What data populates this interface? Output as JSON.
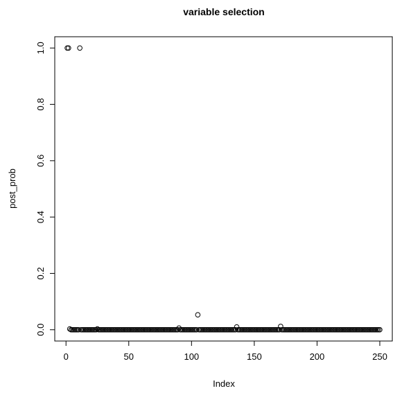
{
  "chart_data": {
    "type": "scatter",
    "title": "variable selection",
    "x_label": "Index",
    "y_label": "post_prob",
    "x": [
      1,
      2,
      3,
      4,
      5,
      6,
      7,
      8,
      9,
      10,
      11,
      12,
      13,
      14,
      15,
      16,
      17,
      18,
      19,
      20,
      21,
      22,
      23,
      24,
      25,
      26,
      27,
      28,
      29,
      30,
      31,
      32,
      33,
      34,
      35,
      36,
      37,
      38,
      39,
      40,
      41,
      42,
      43,
      44,
      45,
      46,
      47,
      48,
      49,
      50,
      51,
      52,
      53,
      54,
      55,
      56,
      57,
      58,
      59,
      60,
      61,
      62,
      63,
      64,
      65,
      66,
      67,
      68,
      69,
      70,
      71,
      72,
      73,
      74,
      75,
      76,
      77,
      78,
      79,
      80,
      81,
      82,
      83,
      84,
      85,
      86,
      87,
      88,
      89,
      90,
      91,
      92,
      93,
      94,
      95,
      96,
      97,
      98,
      99,
      100,
      101,
      102,
      103,
      104,
      105,
      106,
      107,
      108,
      109,
      110,
      111,
      112,
      113,
      114,
      115,
      116,
      117,
      118,
      119,
      120,
      121,
      122,
      123,
      124,
      125,
      126,
      127,
      128,
      129,
      130,
      131,
      132,
      133,
      134,
      135,
      136,
      137,
      138,
      139,
      140,
      141,
      142,
      143,
      144,
      145,
      146,
      147,
      148,
      149,
      150,
      151,
      152,
      153,
      154,
      155,
      156,
      157,
      158,
      159,
      160,
      161,
      162,
      163,
      164,
      165,
      166,
      167,
      168,
      169,
      170,
      171,
      172,
      173,
      174,
      175,
      176,
      177,
      178,
      179,
      180,
      181,
      182,
      183,
      184,
      185,
      186,
      187,
      188,
      189,
      190,
      191,
      192,
      193,
      194,
      195,
      196,
      197,
      198,
      199,
      200,
      201,
      202,
      203,
      204,
      205,
      206,
      207,
      208,
      209,
      210,
      211,
      212,
      213,
      214,
      215,
      216,
      217,
      218,
      219,
      220,
      221,
      222,
      223,
      224,
      225,
      226,
      227,
      228,
      229,
      230,
      231,
      232,
      233,
      234,
      235,
      236,
      237,
      238,
      239,
      240,
      241,
      242,
      243,
      244,
      245,
      246,
      247,
      248,
      249,
      250
    ],
    "values": [
      1,
      1,
      0.003,
      0,
      0,
      0,
      0,
      0,
      0,
      0,
      1,
      0,
      0,
      0,
      0,
      0,
      0,
      0,
      0,
      0,
      0,
      0,
      0,
      0,
      0.003,
      0,
      0,
      0,
      0,
      0,
      0,
      0,
      0,
      0,
      0,
      0,
      0,
      0,
      0,
      0,
      0,
      0,
      0,
      0,
      0,
      0,
      0,
      0,
      0,
      0,
      0,
      0,
      0,
      0,
      0,
      0,
      0,
      0,
      0,
      0,
      0,
      0,
      0,
      0,
      0,
      0,
      0,
      0,
      0,
      0,
      0,
      0,
      0,
      0,
      0,
      0,
      0,
      0,
      0,
      0,
      0,
      0,
      0,
      0,
      0,
      0,
      0,
      0,
      0,
      0.006,
      0,
      0,
      0,
      0,
      0,
      0,
      0,
      0,
      0,
      0,
      0,
      0,
      0,
      0,
      0.053,
      0,
      0,
      0,
      0,
      0,
      0,
      0,
      0,
      0,
      0,
      0,
      0,
      0,
      0,
      0,
      0,
      0,
      0,
      0,
      0,
      0,
      0,
      0,
      0,
      0,
      0,
      0,
      0,
      0,
      0,
      0.01,
      0,
      0,
      0,
      0,
      0,
      0,
      0,
      0,
      0,
      0,
      0,
      0,
      0,
      0,
      0,
      0,
      0,
      0,
      0,
      0,
      0,
      0,
      0,
      0,
      0,
      0,
      0,
      0,
      0,
      0,
      0,
      0,
      0,
      0,
      0.012,
      0,
      0,
      0,
      0,
      0,
      0,
      0,
      0,
      0,
      0,
      0,
      0,
      0,
      0,
      0,
      0,
      0,
      0,
      0,
      0,
      0,
      0,
      0,
      0,
      0,
      0,
      0,
      0,
      0,
      0,
      0,
      0,
      0,
      0,
      0,
      0,
      0,
      0,
      0,
      0,
      0,
      0,
      0,
      0,
      0,
      0,
      0,
      0,
      0,
      0,
      0,
      0,
      0,
      0,
      0,
      0,
      0,
      0,
      0,
      0,
      0,
      0,
      0,
      0,
      0,
      0,
      0,
      0,
      0,
      0,
      0,
      0,
      0,
      0,
      0,
      0,
      0,
      0,
      0
    ],
    "color": "#000000",
    "xlim": [
      -8.96,
      259.96
    ],
    "xticks": [
      0,
      50,
      100,
      150,
      200,
      250
    ],
    "ylim": [
      -0.04,
      1.04
    ],
    "yticks": [
      {
        "value": 0,
        "label": "0.0"
      },
      {
        "value": 0.2,
        "label": "0.2"
      },
      {
        "value": 0.4,
        "label": "0.4"
      },
      {
        "value": 0.6,
        "label": "0.6"
      },
      {
        "value": 0.8,
        "label": "0.8"
      },
      {
        "value": 1,
        "label": "1.0"
      }
    ],
    "grid": false
  }
}
